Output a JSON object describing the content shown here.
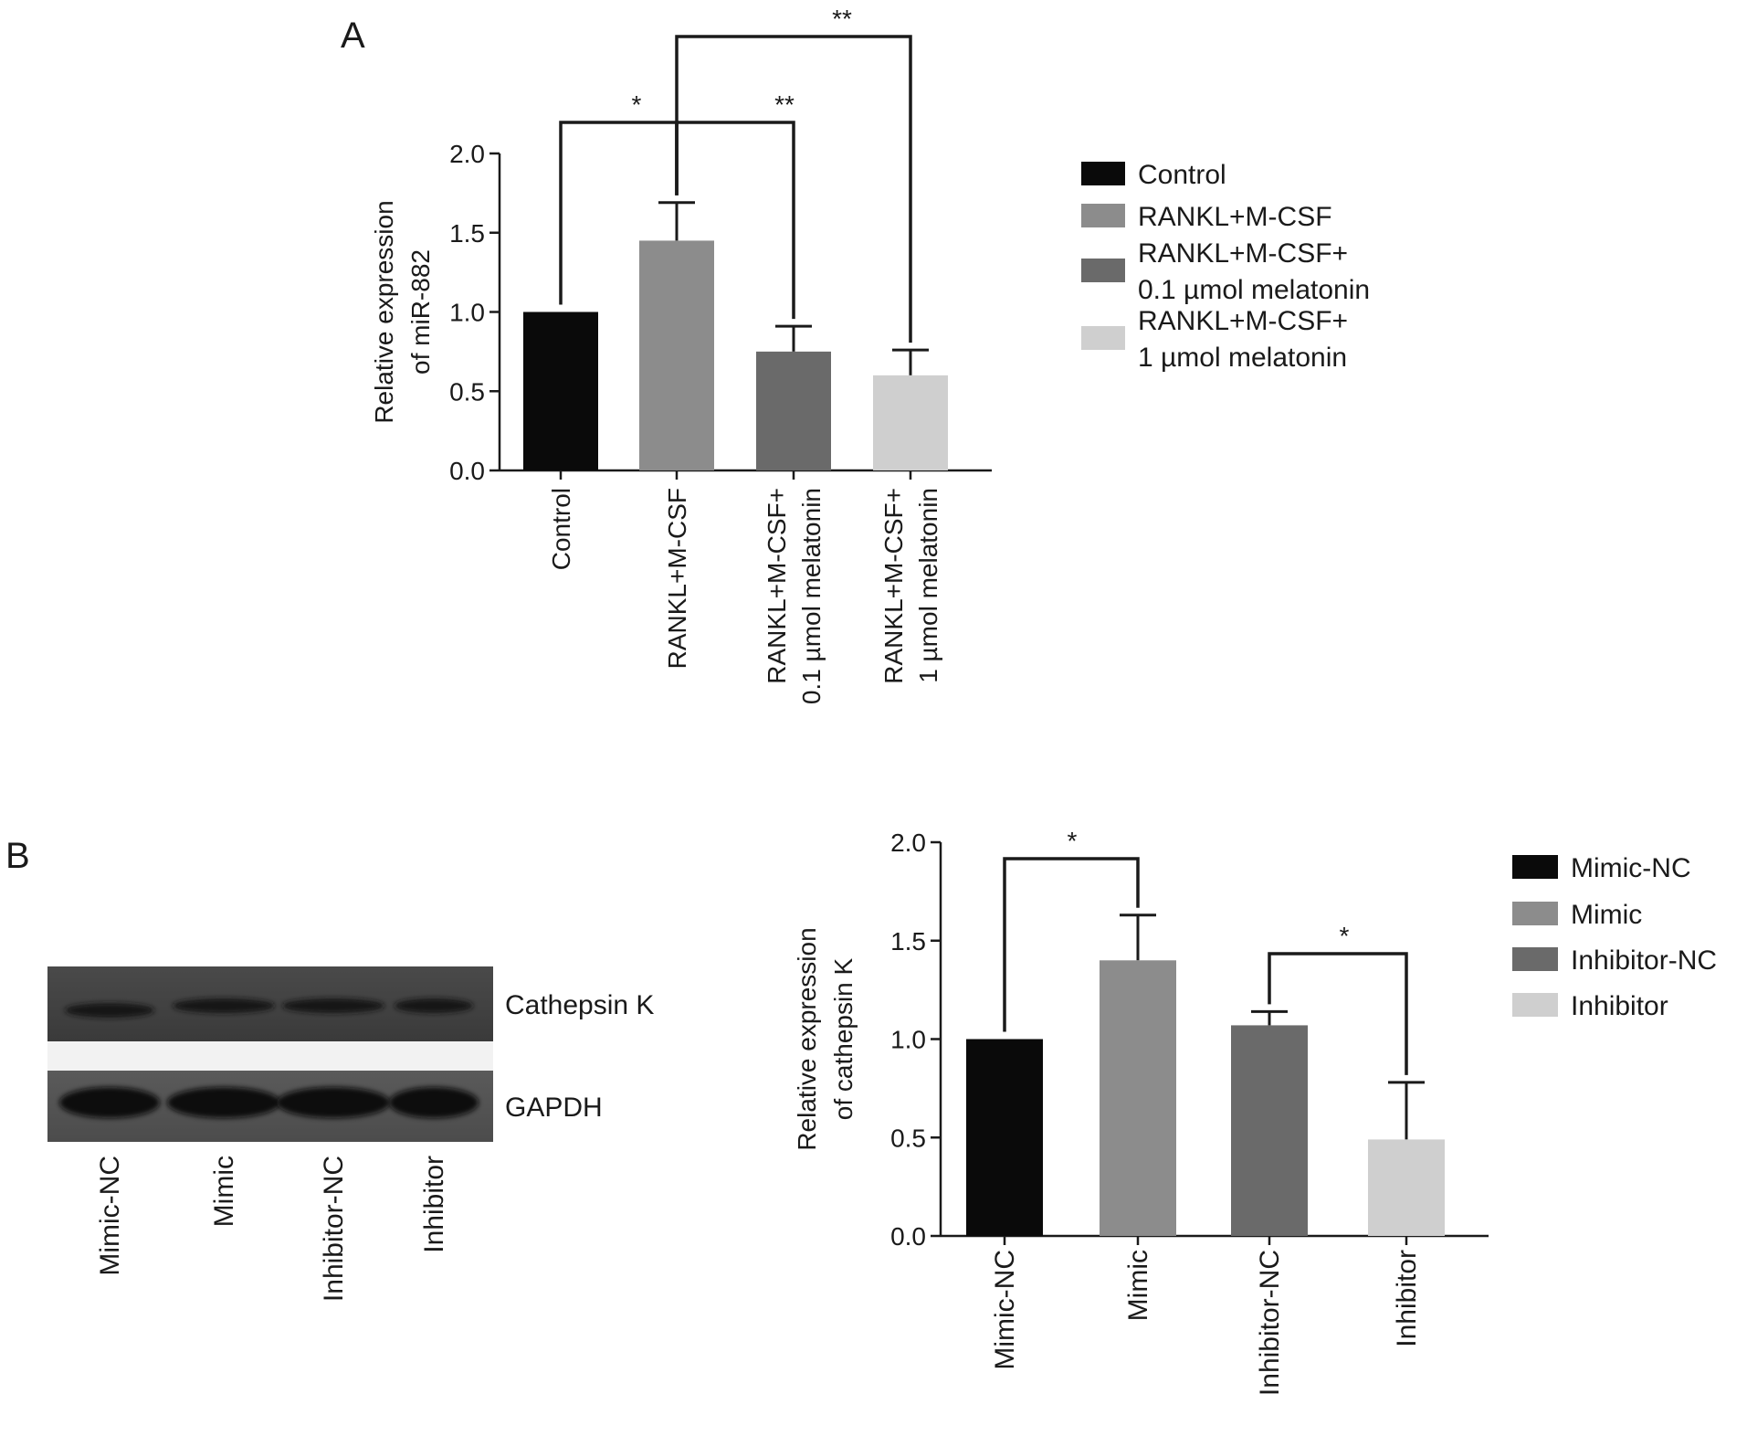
{
  "panels": {
    "a": {
      "letter": "A"
    },
    "b": {
      "letter": "B"
    }
  },
  "colors": {
    "axis": "#1a1a1a",
    "black": "#0a0a0a",
    "mid_gray": "#8c8c8c",
    "dark_gray": "#6a6a6a",
    "light_gray": "#cfcfcf"
  },
  "chart_data": [
    {
      "type": "bar",
      "panel": "A",
      "ylabel": [
        "Relative expression",
        "of miR-882"
      ],
      "ylim": [
        0,
        2.0
      ],
      "yticks": [
        "0.0",
        "0.5",
        "1.0",
        "1.5",
        "2.0"
      ],
      "ytick_values": [
        0,
        0.5,
        1.0,
        1.5,
        2.0
      ],
      "categories": [
        [
          "Control"
        ],
        [
          "RANKL+M-CSF"
        ],
        [
          "RANKL+M-CSF+",
          "0.1 µmol melatonin"
        ],
        [
          "RANKL+M-CSF+",
          "1 µmol melatonin"
        ]
      ],
      "values": [
        1.0,
        1.45,
        0.75,
        0.6
      ],
      "errors": [
        0.0,
        0.24,
        0.16,
        0.16
      ],
      "bar_colors": [
        "#0a0a0a",
        "#8c8c8c",
        "#6a6a6a",
        "#cfcfcf"
      ],
      "legend": [
        [
          "Control"
        ],
        [
          "RANKL+M-CSF"
        ],
        [
          "RANKL+M-CSF+",
          "0.1 µmol melatonin"
        ],
        [
          "RANKL+M-CSF+",
          "1 µmol melatonin"
        ]
      ],
      "legend_placement": "right",
      "significance": [
        {
          "from": 0,
          "to": 1,
          "label": "*"
        },
        {
          "from": 1,
          "to": 2,
          "label": "**"
        },
        {
          "from": 1,
          "to": 3,
          "label": "**"
        }
      ]
    },
    {
      "type": "bar",
      "panel": "B",
      "ylabel": [
        "Relative expression",
        "of cathepsin K"
      ],
      "ylim": [
        0,
        2.0
      ],
      "yticks": [
        "0.0",
        "0.5",
        "1.0",
        "1.5",
        "2.0"
      ],
      "ytick_values": [
        0,
        0.5,
        1.0,
        1.5,
        2.0
      ],
      "categories": [
        [
          "Mimic-NC"
        ],
        [
          "Mimic"
        ],
        [
          "Inhibitor-NC"
        ],
        [
          "Inhibitor"
        ]
      ],
      "values": [
        1.0,
        1.4,
        1.07,
        0.49
      ],
      "errors": [
        0.0,
        0.23,
        0.07,
        0.29
      ],
      "bar_colors": [
        "#0a0a0a",
        "#8c8c8c",
        "#6a6a6a",
        "#cfcfcf"
      ],
      "legend": [
        [
          "Mimic-NC"
        ],
        [
          "Mimic"
        ],
        [
          "Inhibitor-NC"
        ],
        [
          "Inhibitor"
        ]
      ],
      "legend_placement": "right",
      "significance": [
        {
          "from": 0,
          "to": 1,
          "label": "*"
        },
        {
          "from": 2,
          "to": 3,
          "label": "*"
        }
      ]
    }
  ],
  "blot": {
    "band_labels": [
      "Cathepsin K",
      "GAPDH"
    ],
    "lanes": [
      "Mimic-NC",
      "Mimic",
      "Inhibitor-NC",
      "Inhibitor"
    ]
  }
}
